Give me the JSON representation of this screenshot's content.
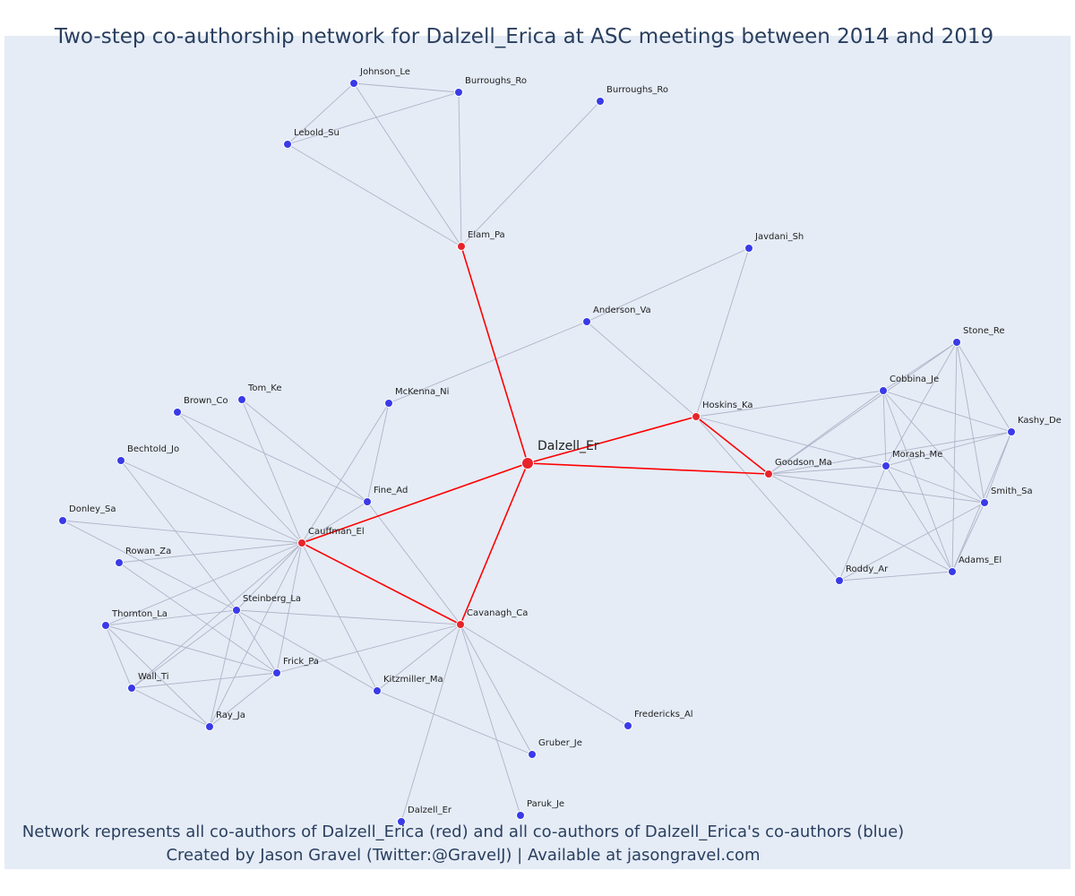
{
  "title": "Two-step co-authorship network for Dalzell_Erica at ASC meetings between 2014 and 2019",
  "captions": {
    "line1": "Network represents all co-authors of Dalzell_Erica (red) and all co-authors of Dalzell_Erica's co-authors (blue)",
    "line2": "Created by Jason Gravel (Twitter:@GravelJ) | Available at jasongravel.com"
  },
  "colors": {
    "first_step": "#e8232a",
    "second_step": "#3a3ae8",
    "red_edge": "#ff0000",
    "grey_edge": "#b0b4c8",
    "background": "#e5ecf6"
  },
  "chart_data": {
    "type": "network",
    "nodes": [
      {
        "id": "Dalzell_Er",
        "group": "ego"
      },
      {
        "id": "Elam_Pa",
        "group": "first"
      },
      {
        "id": "Hoskins_Ka",
        "group": "first"
      },
      {
        "id": "Goodson_Ma",
        "group": "first"
      },
      {
        "id": "Cauffman_El",
        "group": "first"
      },
      {
        "id": "Cavanagh_Ca",
        "group": "first"
      },
      {
        "id": "Johnson_Le",
        "group": "second"
      },
      {
        "id": "Burroughs_Ro",
        "group": "second"
      },
      {
        "id": "Burroughs_Ro_2",
        "label": "Burroughs_Ro",
        "group": "second"
      },
      {
        "id": "Lebold_Su",
        "group": "second"
      },
      {
        "id": "Javdani_Sh",
        "group": "second"
      },
      {
        "id": "Anderson_Va",
        "group": "second"
      },
      {
        "id": "Stone_Re",
        "group": "second"
      },
      {
        "id": "Cobbina_Je",
        "group": "second"
      },
      {
        "id": "Kashy_De",
        "group": "second"
      },
      {
        "id": "Morash_Me",
        "group": "second"
      },
      {
        "id": "Smith_Sa",
        "group": "second"
      },
      {
        "id": "Adams_El",
        "group": "second"
      },
      {
        "id": "Roddy_Ar",
        "group": "second"
      },
      {
        "id": "McKenna_Ni",
        "group": "second"
      },
      {
        "id": "Tom_Ke",
        "group": "second"
      },
      {
        "id": "Brown_Co",
        "group": "second"
      },
      {
        "id": "Bechtold_Jo",
        "group": "second"
      },
      {
        "id": "Fine_Ad",
        "group": "second"
      },
      {
        "id": "Donley_Sa",
        "group": "second"
      },
      {
        "id": "Rowan_Za",
        "group": "second"
      },
      {
        "id": "Steinberg_La",
        "group": "second"
      },
      {
        "id": "Thornton_La",
        "group": "second"
      },
      {
        "id": "Frick_Pa",
        "group": "second"
      },
      {
        "id": "Wall_Ti",
        "group": "second"
      },
      {
        "id": "Kitzmiller_Ma",
        "group": "second"
      },
      {
        "id": "Ray_Ja",
        "group": "second"
      },
      {
        "id": "Fredericks_Al",
        "group": "second"
      },
      {
        "id": "Gruber_Je",
        "group": "second"
      },
      {
        "id": "Paruk_Je",
        "group": "second"
      },
      {
        "id": "Dalzell_Er_2",
        "label": "Dalzell_Er",
        "group": "second"
      }
    ],
    "edges": [
      [
        "Dalzell_Er",
        "Elam_Pa"
      ],
      [
        "Dalzell_Er",
        "Hoskins_Ka"
      ],
      [
        "Dalzell_Er",
        "Goodson_Ma"
      ],
      [
        "Dalzell_Er",
        "Cauffman_El"
      ],
      [
        "Dalzell_Er",
        "Cavanagh_Ca"
      ],
      [
        "Hoskins_Ka",
        "Goodson_Ma"
      ],
      [
        "Cauffman_El",
        "Cavanagh_Ca"
      ],
      [
        "Elam_Pa",
        "Johnson_Le"
      ],
      [
        "Elam_Pa",
        "Burroughs_Ro"
      ],
      [
        "Elam_Pa",
        "Lebold_Su"
      ],
      [
        "Elam_Pa",
        "Burroughs_Ro_2"
      ],
      [
        "Johnson_Le",
        "Burroughs_Ro"
      ],
      [
        "Johnson_Le",
        "Lebold_Su"
      ],
      [
        "Lebold_Su",
        "Burroughs_Ro"
      ],
      [
        "Hoskins_Ka",
        "Javdani_Sh"
      ],
      [
        "Hoskins_Ka",
        "Anderson_Va"
      ],
      [
        "Hoskins_Ka",
        "Cobbina_Je"
      ],
      [
        "Hoskins_Ka",
        "Morash_Me"
      ],
      [
        "Hoskins_Ka",
        "Roddy_Ar"
      ],
      [
        "Anderson_Va",
        "Javdani_Sh"
      ],
      [
        "Anderson_Va",
        "McKenna_Ni"
      ],
      [
        "Goodson_Ma",
        "Cobbina_Je"
      ],
      [
        "Goodson_Ma",
        "Stone_Re"
      ],
      [
        "Goodson_Ma",
        "Kashy_De"
      ],
      [
        "Goodson_Ma",
        "Morash_Me"
      ],
      [
        "Goodson_Ma",
        "Smith_Sa"
      ],
      [
        "Goodson_Ma",
        "Adams_El"
      ],
      [
        "Cobbina_Je",
        "Stone_Re"
      ],
      [
        "Cobbina_Je",
        "Kashy_De"
      ],
      [
        "Cobbina_Je",
        "Morash_Me"
      ],
      [
        "Cobbina_Je",
        "Smith_Sa"
      ],
      [
        "Cobbina_Je",
        "Adams_El"
      ],
      [
        "Stone_Re",
        "Kashy_De"
      ],
      [
        "Stone_Re",
        "Morash_Me"
      ],
      [
        "Stone_Re",
        "Smith_Sa"
      ],
      [
        "Stone_Re",
        "Adams_El"
      ],
      [
        "Kashy_De",
        "Morash_Me"
      ],
      [
        "Kashy_De",
        "Smith_Sa"
      ],
      [
        "Kashy_De",
        "Adams_El"
      ],
      [
        "Morash_Me",
        "Smith_Sa"
      ],
      [
        "Morash_Me",
        "Adams_El"
      ],
      [
        "Morash_Me",
        "Roddy_Ar"
      ],
      [
        "Smith_Sa",
        "Adams_El"
      ],
      [
        "Smith_Sa",
        "Roddy_Ar"
      ],
      [
        "Roddy_Ar",
        "Adams_El"
      ],
      [
        "Cauffman_El",
        "McKenna_Ni"
      ],
      [
        "Cauffman_El",
        "Tom_Ke"
      ],
      [
        "Cauffman_El",
        "Brown_Co"
      ],
      [
        "Cauffman_El",
        "Fine_Ad"
      ],
      [
        "Cauffman_El",
        "Donley_Sa"
      ],
      [
        "Cauffman_El",
        "Rowan_Za"
      ],
      [
        "Cauffman_El",
        "Steinberg_La"
      ],
      [
        "Cauffman_El",
        "Thornton_La"
      ],
      [
        "Cauffman_El",
        "Frick_Pa"
      ],
      [
        "Cauffman_El",
        "Wall_Ti"
      ],
      [
        "Cauffman_El",
        "Kitzmiller_Ma"
      ],
      [
        "Cauffman_El",
        "Ray_Ja"
      ],
      [
        "Cauffman_El",
        "Bechtold_Jo"
      ],
      [
        "Tom_Ke",
        "Fine_Ad"
      ],
      [
        "Brown_Co",
        "Fine_Ad"
      ],
      [
        "McKenna_Ni",
        "Fine_Ad"
      ],
      [
        "Fine_Ad",
        "Cavanagh_Ca"
      ],
      [
        "Bechtold_Jo",
        "Steinberg_La"
      ],
      [
        "Donley_Sa",
        "Steinberg_La"
      ],
      [
        "Rowan_Za",
        "Frick_Pa"
      ],
      [
        "Steinberg_La",
        "Thornton_La"
      ],
      [
        "Steinberg_La",
        "Frick_Pa"
      ],
      [
        "Steinberg_La",
        "Wall_Ti"
      ],
      [
        "Steinberg_La",
        "Ray_Ja"
      ],
      [
        "Steinberg_La",
        "Kitzmiller_Ma"
      ],
      [
        "Steinberg_La",
        "Cavanagh_Ca"
      ],
      [
        "Thornton_La",
        "Frick_Pa"
      ],
      [
        "Thornton_La",
        "Wall_Ti"
      ],
      [
        "Thornton_La",
        "Ray_Ja"
      ],
      [
        "Frick_Pa",
        "Wall_Ti"
      ],
      [
        "Frick_Pa",
        "Ray_Ja"
      ],
      [
        "Frick_Pa",
        "Cavanagh_Ca"
      ],
      [
        "Wall_Ti",
        "Ray_Ja"
      ],
      [
        "Cavanagh_Ca",
        "Kitzmiller_Ma"
      ],
      [
        "Cavanagh_Ca",
        "Fredericks_Al"
      ],
      [
        "Cavanagh_Ca",
        "Gruber_Je"
      ],
      [
        "Cavanagh_Ca",
        "Paruk_Je"
      ],
      [
        "Cavanagh_Ca",
        "Dalzell_Er_2"
      ],
      [
        "Kitzmiller_Ma",
        "Gruber_Je"
      ]
    ]
  }
}
